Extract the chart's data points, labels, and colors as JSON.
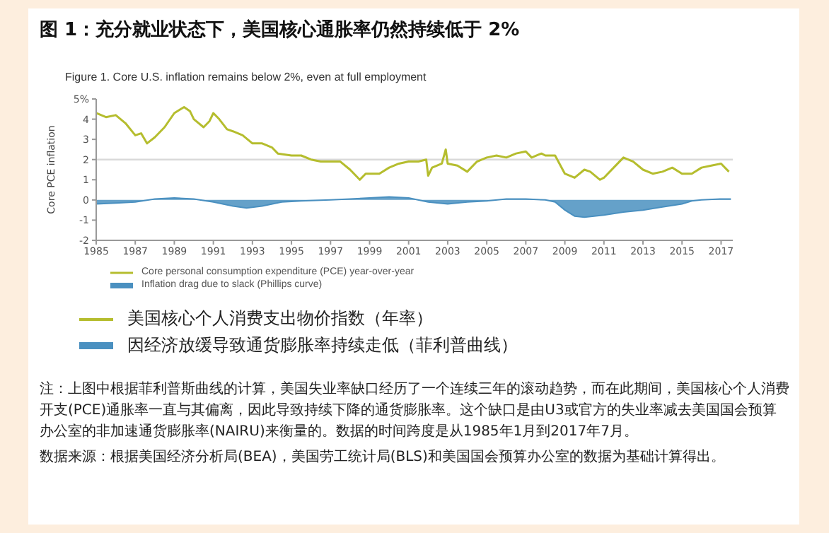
{
  "chart_data": {
    "type": "line",
    "title": "图 1：充分就业状态下，美国核心通胀率仍然持续低于 2%",
    "subtitle": "Figure 1. Core U.S. inflation remains below 2%, even at full employment",
    "ylabel": "Core PCE inflation",
    "xlim": [
      1985,
      2017.6
    ],
    "xticks": [
      1985,
      1987,
      1989,
      1991,
      1993,
      1995,
      1997,
      1999,
      2001,
      2003,
      2005,
      2007,
      2009,
      2011,
      2013,
      2015,
      2017
    ],
    "ylim": [
      -2,
      5
    ],
    "yticks": [
      -2,
      -1,
      0,
      1,
      2,
      3,
      4,
      {
        "value": 5,
        "label": "5%"
      }
    ],
    "legend": "bottom",
    "ref_lines": [
      {
        "axis": "y",
        "value": 2,
        "color": "#d9d9d9"
      }
    ],
    "series": [
      {
        "name": "Core personal consumption expenditure (PCE) year-over-year",
        "color": "#b5bd2e",
        "x": [
          1985,
          1985.5,
          1986,
          1986.5,
          1987,
          1987.3,
          1987.6,
          1988,
          1988.5,
          1989,
          1989.5,
          1989.8,
          1990,
          1990.5,
          1990.8,
          1991,
          1991.3,
          1991.7,
          1992,
          1992.5,
          1993,
          1993.5,
          1994,
          1994.3,
          1995,
          1995.5,
          1996,
          1996.5,
          1997,
          1997.5,
          1998,
          1998.5,
          1998.8,
          1999.5,
          2000,
          2000.5,
          2001,
          2001.5,
          2001.9,
          2002,
          2002.2,
          2002.7,
          2002.9,
          2003,
          2003.5,
          2004,
          2004.5,
          2005,
          2005.5,
          2006,
          2006.5,
          2007,
          2007.3,
          2007.8,
          2008,
          2008.5,
          2009,
          2009.5,
          2010,
          2010.3,
          2010.8,
          2011,
          2011.5,
          2012,
          2012.5,
          2013,
          2013.5,
          2014,
          2014.5,
          2015,
          2015.5,
          2016,
          2016.5,
          2017,
          2017.4
        ],
        "values": [
          4.3,
          4.1,
          4.2,
          3.8,
          3.2,
          3.3,
          2.8,
          3.1,
          3.6,
          4.3,
          4.6,
          4.4,
          4.0,
          3.6,
          3.9,
          4.3,
          4.0,
          3.5,
          3.4,
          3.2,
          2.8,
          2.8,
          2.6,
          2.3,
          2.2,
          2.2,
          2.0,
          1.9,
          1.9,
          1.9,
          1.5,
          1.0,
          1.3,
          1.3,
          1.6,
          1.8,
          1.9,
          1.9,
          2.0,
          1.2,
          1.6,
          1.8,
          2.5,
          1.8,
          1.7,
          1.4,
          1.9,
          2.1,
          2.2,
          2.1,
          2.3,
          2.4,
          2.1,
          2.3,
          2.2,
          2.2,
          1.3,
          1.1,
          1.5,
          1.4,
          1.0,
          1.1,
          1.6,
          2.1,
          1.9,
          1.5,
          1.3,
          1.4,
          1.6,
          1.3,
          1.3,
          1.6,
          1.7,
          1.8,
          1.4
        ]
      },
      {
        "name": "Inflation drag due to slack (Phillips curve)",
        "type": "area",
        "color": "#4a90c0",
        "x": [
          1985,
          1986,
          1987,
          1988,
          1989,
          1990,
          1991,
          1992,
          1992.7,
          1993.5,
          1994.5,
          1995.5,
          1997,
          1998,
          1999,
          2000,
          2001,
          2002,
          2003,
          2004,
          2005,
          2006,
          2007,
          2008,
          2008.5,
          2009,
          2009.5,
          2010,
          2011,
          2012,
          2013,
          2014,
          2015,
          2015.5,
          2016,
          2017,
          2017.5
        ],
        "values": [
          -0.2,
          -0.15,
          -0.1,
          0.05,
          0.1,
          0.05,
          -0.1,
          -0.3,
          -0.4,
          -0.3,
          -0.1,
          -0.05,
          0,
          0.05,
          0.1,
          0.15,
          0.1,
          -0.1,
          -0.2,
          -0.1,
          -0.05,
          0.05,
          0.05,
          0,
          -0.1,
          -0.5,
          -0.8,
          -0.85,
          -0.75,
          -0.6,
          -0.5,
          -0.35,
          -0.2,
          -0.05,
          0,
          0.05,
          0.05
        ]
      }
    ],
    "annotations": [
      "美国核心个人消费支出物价指数（年率）",
      "因经济放缓导致通货膨胀率持续走低（菲利普曲线）",
      "注：上图中根据菲利普斯曲线的计算，美国失业率缺口经历了一个连续三年的滚动趋势，而在此期间，美国核心个人消费开支(PCE)通胀率一直与其偏离，因此导致持续下降的通货膨胀率。这个缺口是由U3或官方的失业率减去美国国会预算办公室的非加速通货膨胀率(NAIRU)来衡量的。数据的时间跨度是从1985年1月到2017年7月。",
      "数据来源：根据美国经济分析局(BEA)，美国劳工统计局(BLS)和美国国会预算办公室的数据为基础计算得出。"
    ]
  }
}
